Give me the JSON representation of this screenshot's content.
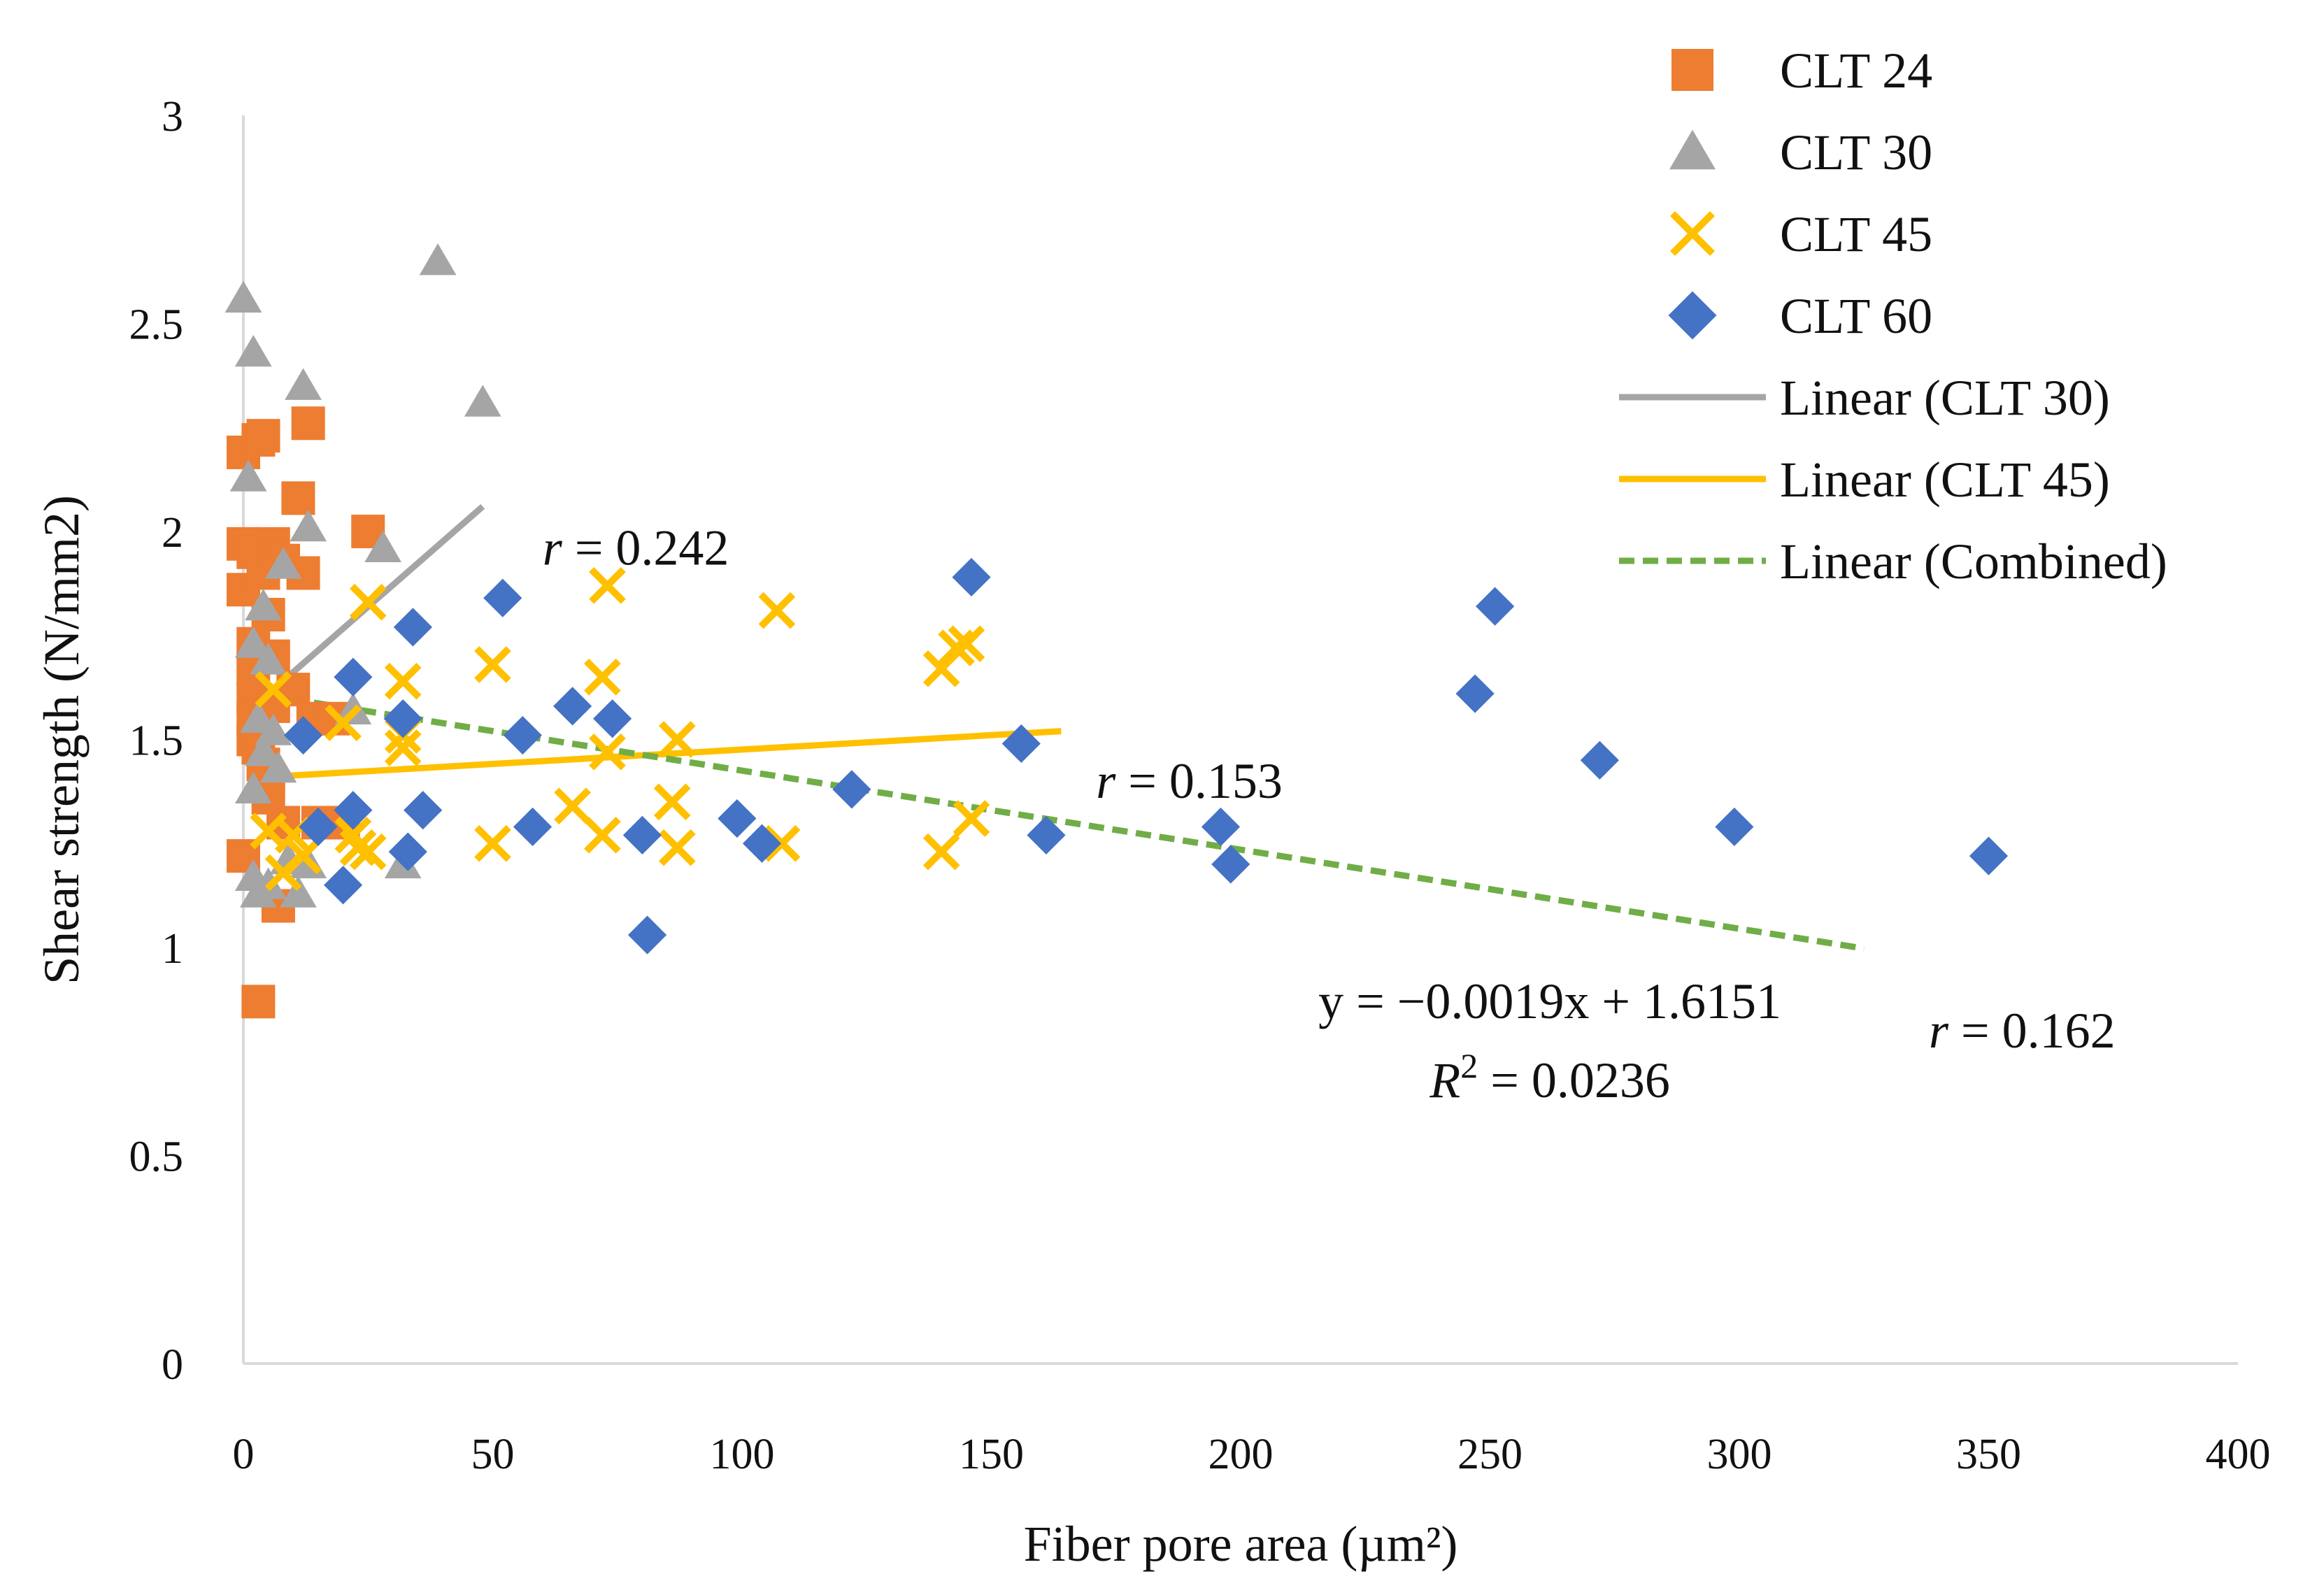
{
  "chart_data": {
    "type": "scatter",
    "title": "",
    "xlabel": "Fiber pore area (µm²)",
    "ylabel": "Shear strength (N/mm2)",
    "xlim": [
      0,
      400
    ],
    "ylim": [
      0,
      3
    ],
    "x_ticks": [
      0,
      50,
      100,
      150,
      200,
      250,
      300,
      350,
      400
    ],
    "y_ticks": [
      0,
      0.5,
      1,
      1.5,
      2,
      2.5,
      3
    ],
    "x_tick_labels": [
      "0",
      "50",
      "100",
      "150",
      "200",
      "250",
      "300",
      "350",
      "400"
    ],
    "y_tick_labels": [
      "0",
      "0.5",
      "1",
      "1.5",
      "2",
      "2.5",
      "3"
    ],
    "grid": false,
    "legend_position": "top-right",
    "series": [
      {
        "name": "CLT 24",
        "marker": "square",
        "color": "#ED7D31",
        "points": [
          [
            0,
            2.19
          ],
          [
            0,
            1.97
          ],
          [
            0,
            1.86
          ],
          [
            0,
            1.22
          ],
          [
            2,
            1.95
          ],
          [
            2,
            1.73
          ],
          [
            2,
            1.67
          ],
          [
            2,
            1.6
          ],
          [
            2,
            1.55
          ],
          [
            2,
            1.5
          ],
          [
            3,
            2.22
          ],
          [
            3,
            1.48
          ],
          [
            4,
            2.23
          ],
          [
            4,
            1.9
          ],
          [
            4,
            1.44
          ],
          [
            5,
            1.8
          ],
          [
            5,
            1.4
          ],
          [
            5,
            1.36
          ],
          [
            6,
            1.97
          ],
          [
            6,
            1.7
          ],
          [
            6,
            1.58
          ],
          [
            7,
            1.1
          ],
          [
            8,
            1.93
          ],
          [
            8,
            1.3
          ],
          [
            10,
            1.62
          ],
          [
            11,
            2.08
          ],
          [
            12,
            1.9
          ],
          [
            13,
            2.26
          ],
          [
            14,
            1.55
          ],
          [
            15,
            1.3
          ],
          [
            18,
            1.55
          ],
          [
            20,
            1.3
          ],
          [
            25,
            2.0
          ],
          [
            3,
            0.87
          ]
        ]
      },
      {
        "name": "CLT 30",
        "marker": "triangle",
        "color": "#A5A5A5",
        "points": [
          [
            0,
            2.56
          ],
          [
            1,
            2.13
          ],
          [
            2,
            2.43
          ],
          [
            2,
            1.73
          ],
          [
            2,
            1.38
          ],
          [
            2,
            1.17
          ],
          [
            3,
            1.55
          ],
          [
            3,
            1.13
          ],
          [
            4,
            1.82
          ],
          [
            4,
            1.47
          ],
          [
            5,
            1.69
          ],
          [
            5,
            1.15
          ],
          [
            6,
            1.52
          ],
          [
            7,
            1.43
          ],
          [
            8,
            1.92
          ],
          [
            9,
            1.21
          ],
          [
            11,
            1.13
          ],
          [
            12,
            2.35
          ],
          [
            13,
            2.01
          ],
          [
            13,
            1.2
          ],
          [
            22,
            1.57
          ],
          [
            28,
            1.96
          ],
          [
            32,
            1.2
          ],
          [
            39,
            2.65
          ],
          [
            48,
            2.31
          ]
        ]
      },
      {
        "name": "CLT 45",
        "marker": "x",
        "color": "#FFC000",
        "points": [
          [
            5,
            1.28
          ],
          [
            6,
            1.62
          ],
          [
            8,
            1.18
          ],
          [
            10,
            1.27
          ],
          [
            12,
            1.22
          ],
          [
            20,
            1.54
          ],
          [
            22,
            1.27
          ],
          [
            23,
            1.24
          ],
          [
            25,
            1.23
          ],
          [
            25,
            1.83
          ],
          [
            32,
            1.64
          ],
          [
            32,
            1.51
          ],
          [
            32,
            1.48
          ],
          [
            50,
            1.68
          ],
          [
            50,
            1.25
          ],
          [
            66,
            1.34
          ],
          [
            72,
            1.65
          ],
          [
            72,
            1.27
          ],
          [
            73,
            1.87
          ],
          [
            73,
            1.47
          ],
          [
            86,
            1.35
          ],
          [
            87,
            1.5
          ],
          [
            87,
            1.24
          ],
          [
            107,
            1.81
          ],
          [
            108,
            1.25
          ],
          [
            140,
            1.67
          ],
          [
            140,
            1.23
          ],
          [
            143,
            1.72
          ],
          [
            145,
            1.73
          ],
          [
            146,
            1.31
          ]
        ]
      },
      {
        "name": "CLT 60",
        "marker": "diamond",
        "color": "#4472C4",
        "points": [
          [
            12,
            1.51
          ],
          [
            15,
            1.29
          ],
          [
            20,
            1.15
          ],
          [
            22,
            1.65
          ],
          [
            22,
            1.33
          ],
          [
            32,
            1.55
          ],
          [
            33,
            1.23
          ],
          [
            34,
            1.77
          ],
          [
            36,
            1.33
          ],
          [
            52,
            1.84
          ],
          [
            56,
            1.51
          ],
          [
            58,
            1.29
          ],
          [
            66,
            1.58
          ],
          [
            74,
            1.55
          ],
          [
            80,
            1.27
          ],
          [
            81,
            1.03
          ],
          [
            99,
            1.31
          ],
          [
            104,
            1.25
          ],
          [
            122,
            1.38
          ],
          [
            146,
            1.89
          ],
          [
            156,
            1.49
          ],
          [
            161,
            1.27
          ],
          [
            196,
            1.29
          ],
          [
            198,
            1.2
          ],
          [
            247,
            1.61
          ],
          [
            251,
            1.82
          ],
          [
            272,
            1.45
          ],
          [
            299,
            1.29
          ],
          [
            350,
            1.22
          ]
        ]
      }
    ],
    "trendlines": [
      {
        "name": "Linear (CLT 30)",
        "color": "#A5A5A5",
        "style": "solid",
        "x": [
          6,
          48
        ],
        "y": [
          1.62,
          2.06
        ]
      },
      {
        "name": "Linear (CLT 45)",
        "color": "#FFC000",
        "style": "solid",
        "x": [
          5,
          164
        ],
        "y": [
          1.41,
          1.52
        ]
      },
      {
        "name": "Linear (Combined)",
        "color": "#70AD47",
        "style": "dashed",
        "x": [
          0,
          325
        ],
        "y": [
          1.6151,
          0.9976
        ]
      }
    ],
    "annotations": {
      "r_clt30": {
        "label": "r",
        "text": " = 0.242",
        "x": 60,
        "y": 1.92
      },
      "r_clt45": {
        "label": "r",
        "text": " = 0.153",
        "x": 171,
        "y": 1.36
      },
      "r_combined": {
        "label": "r",
        "text": " = 0.162",
        "x": 338,
        "y": 0.76
      },
      "equation": {
        "text": "y = −0.0019x + 1.6151",
        "x": 262,
        "y": 0.83
      },
      "r_squared": {
        "label": "R",
        "sup": "2",
        "text": " = 0.0236",
        "x": 262,
        "y": 0.64
      }
    }
  },
  "colors": {
    "axis": "#D9D9D9",
    "text": "#111111"
  }
}
